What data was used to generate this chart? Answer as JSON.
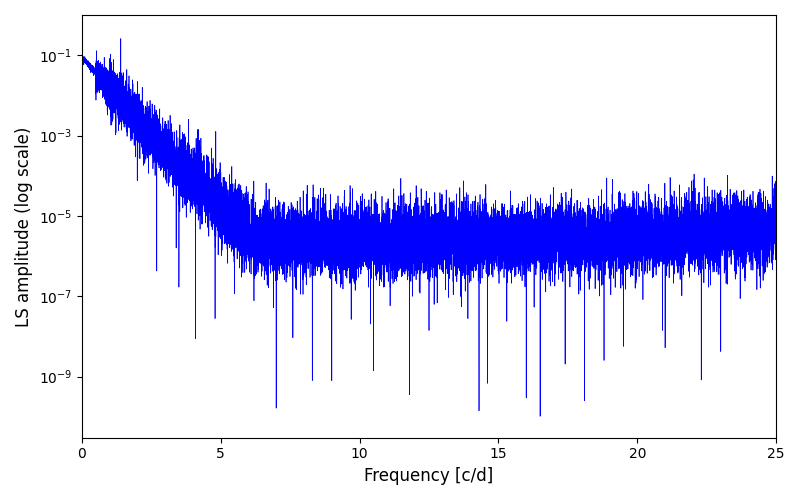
{
  "title": "",
  "xlabel": "Frequency [c/d]",
  "ylabel": "LS amplitude (log scale)",
  "xlim": [
    0,
    25
  ],
  "ylim_log": [
    3e-11,
    1.0
  ],
  "line_color": "#0000ff",
  "line_width": 0.5,
  "background_color": "#ffffff",
  "figsize": [
    8.0,
    5.0
  ],
  "dpi": 100,
  "seed": 42,
  "n_points": 15000,
  "freq_max": 25.0
}
